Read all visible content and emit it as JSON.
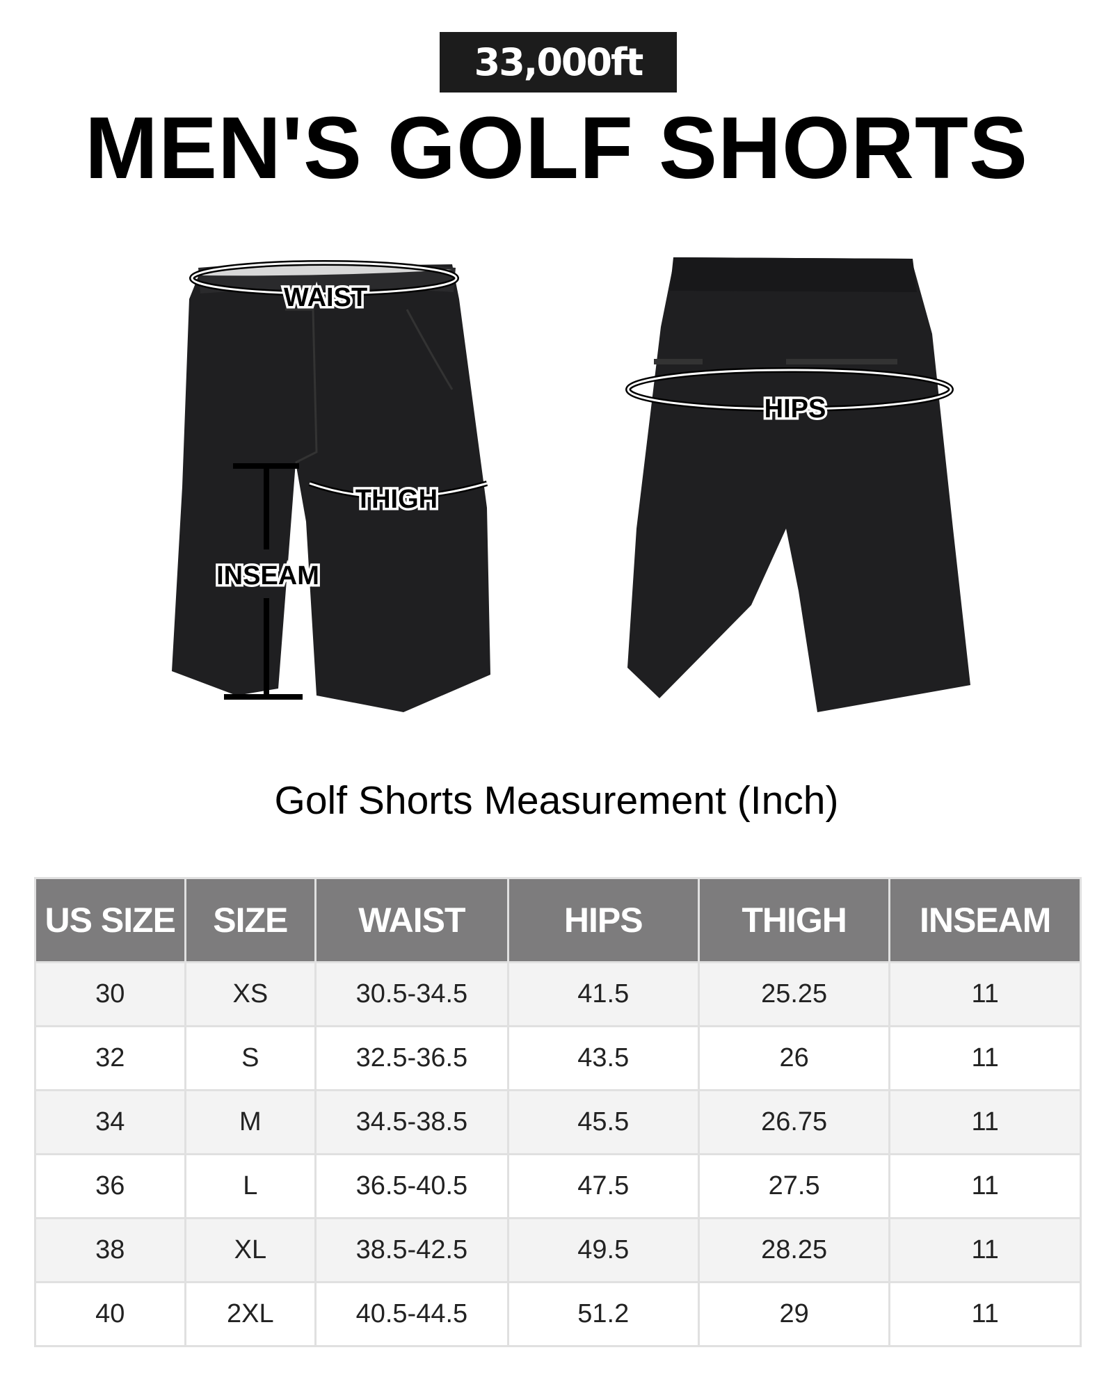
{
  "brand": {
    "logo_text": "33,000ft"
  },
  "title": "MEN'S GOLF SHORTS",
  "diagram": {
    "front_labels": {
      "waist": "WAIST",
      "thigh": "THIGH",
      "inseam": "INSEAM"
    },
    "back_labels": {
      "hips": "HIPS"
    },
    "garment_color": "#1f1f21"
  },
  "subtitle": "Golf Shorts Measurement (Inch)",
  "table": {
    "headers": [
      "US SIZE",
      "SIZE",
      "WAIST",
      "HIPS",
      "THIGH",
      "INSEAM"
    ],
    "rows": [
      [
        "30",
        "XS",
        "30.5-34.5",
        "41.5",
        "25.25",
        "11"
      ],
      [
        "32",
        "S",
        "32.5-36.5",
        "43.5",
        "26",
        "11"
      ],
      [
        "34",
        "M",
        "34.5-38.5",
        "45.5",
        "26.75",
        "11"
      ],
      [
        "36",
        "L",
        "36.5-40.5",
        "47.5",
        "27.5",
        "11"
      ],
      [
        "38",
        "XL",
        "38.5-42.5",
        "49.5",
        "28.25",
        "11"
      ],
      [
        "40",
        "2XL",
        "40.5-44.5",
        "51.2",
        "29",
        "11"
      ]
    ],
    "header_color": "#7d7c7d",
    "stripe_color": "#f3f3f3"
  }
}
